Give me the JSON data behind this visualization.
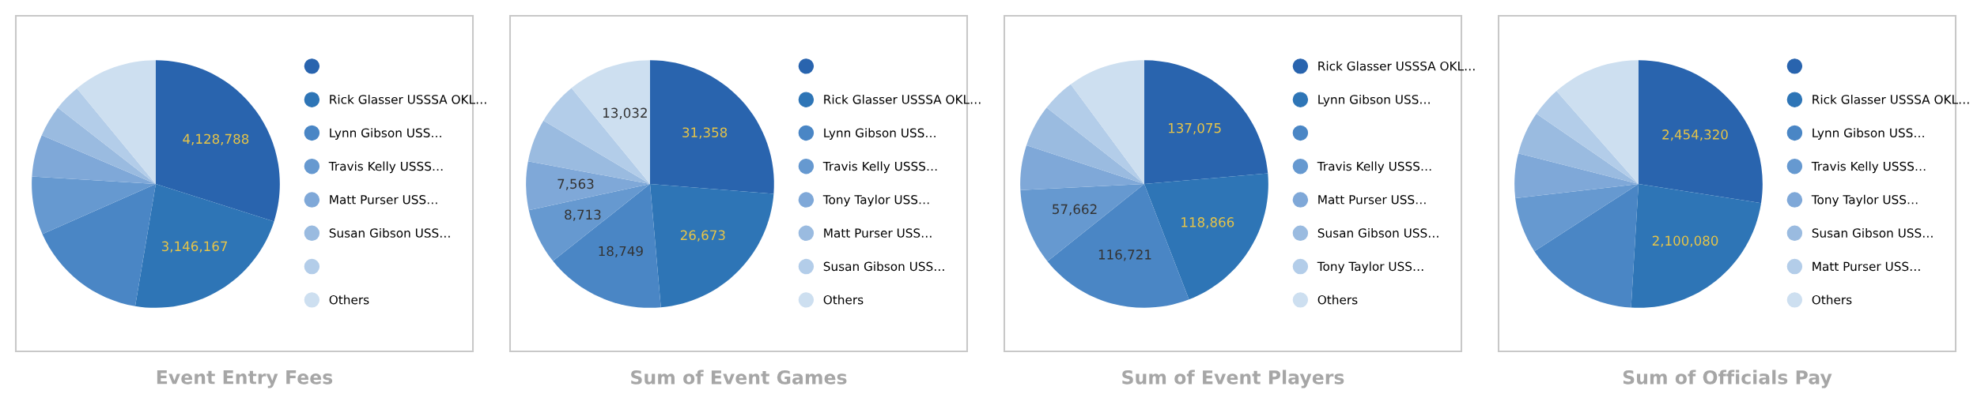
{
  "chart_data": [
    {
      "type": "pie",
      "title": "Event Entry Fees",
      "legend": "right",
      "categories": [
        null,
        "Rick Glasser USSSA OKL…",
        "Lynn Gibson USS…",
        "Travis Kelly USSS…",
        "Matt Purser USS…",
        "Susan Gibson USS…",
        null,
        "Others"
      ],
      "values": [
        4128788,
        3146167,
        2170000,
        1050000,
        757000,
        565000,
        484000,
        1515000
      ],
      "value_labels": [
        "4,128,788",
        "3,146,167",
        null,
        null,
        null,
        null,
        null,
        null
      ],
      "colors": [
        "#2964ae",
        "#2e75b6",
        "#4a86c5",
        "#6699d0",
        "#7fa8d8",
        "#9abbe0",
        "#b3cde9",
        "#cddff0"
      ]
    },
    {
      "type": "pie",
      "title": "Sum of Event Games",
      "legend": "right",
      "categories": [
        null,
        "Rick Glasser USSSA OKL…",
        "Lynn Gibson USS…",
        "Travis Kelly USSS…",
        "Tony Taylor USS…",
        "Matt Purser USS…",
        "Susan Gibson USS…",
        "Others"
      ],
      "values": [
        31358,
        26673,
        18749,
        8713,
        7563,
        6700,
        6600,
        13032
      ],
      "value_labels": [
        "31,358",
        "26,673",
        "18,749",
        "8,713",
        "7,563",
        null,
        null,
        "13,032"
      ],
      "colors": [
        "#2964ae",
        "#2e75b6",
        "#4a86c5",
        "#6699d0",
        "#7fa8d8",
        "#9abbe0",
        "#b3cde9",
        "#cddff0"
      ]
    },
    {
      "type": "pie",
      "title": "Sum of Event Players",
      "legend": "right",
      "categories": [
        "Rick Glasser USSSA OKL…",
        "Lynn Gibson USS…",
        null,
        "Travis Kelly USSS…",
        "Matt Purser USS…",
        "Susan Gibson USS…",
        "Tony Taylor USS…",
        "Others"
      ],
      "values": [
        137075,
        118866,
        116721,
        57662,
        34000,
        31900,
        25100,
        58600
      ],
      "value_labels": [
        "137,075",
        "118,866",
        "116,721",
        "57,662",
        null,
        null,
        null,
        null
      ],
      "colors": [
        "#2964ae",
        "#2e75b6",
        "#4a86c5",
        "#6699d0",
        "#7fa8d8",
        "#9abbe0",
        "#b3cde9",
        "#cddff0"
      ]
    },
    {
      "type": "pie",
      "title": "Sum of Officials Pay",
      "legend": "right",
      "categories": [
        null,
        "Rick Glasser USSSA OKL…",
        "Lynn Gibson USS…",
        "Travis Kelly USSS…",
        "Tony Taylor USS…",
        "Susan Gibson USS…",
        "Matt Purser USS…",
        "Others"
      ],
      "values": [
        2454320,
        2100080,
        1332000,
        652000,
        520000,
        503000,
        348000,
        1028000
      ],
      "value_labels": [
        "2,454,320",
        "2,100,080",
        null,
        null,
        null,
        null,
        null,
        null
      ],
      "colors": [
        "#2964ae",
        "#2e75b6",
        "#4a86c5",
        "#6699d0",
        "#7fa8d8",
        "#9abbe0",
        "#b3cde9",
        "#cddff0"
      ]
    }
  ]
}
